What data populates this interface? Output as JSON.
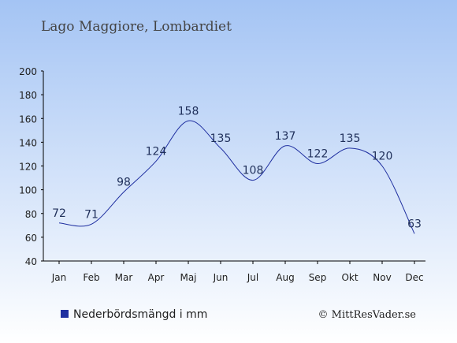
{
  "colors": {
    "bg_top": "#a4c4f4",
    "bg_bottom": "#ffffff",
    "line": "#1f2fa0",
    "legend_marker": "#1f2fa0",
    "text": "#1f2f5a"
  },
  "copyright": "© MittResVader.se",
  "chart_data": {
    "type": "line",
    "title": "Lago Maggiore, Lombardiet",
    "categories": [
      "Jan",
      "Feb",
      "Mar",
      "Apr",
      "Maj",
      "Jun",
      "Jul",
      "Aug",
      "Sep",
      "Okt",
      "Nov",
      "Dec"
    ],
    "series": [
      {
        "name": "Nederbördsmängd i mm",
        "values": [
          72,
          71,
          98,
          124,
          158,
          135,
          108,
          137,
          122,
          135,
          120,
          63
        ]
      }
    ],
    "ylim": [
      40,
      200
    ],
    "yticks": [
      40,
      60,
      80,
      100,
      120,
      140,
      160,
      180,
      200
    ],
    "grid": false,
    "legend": "bottom-left"
  }
}
